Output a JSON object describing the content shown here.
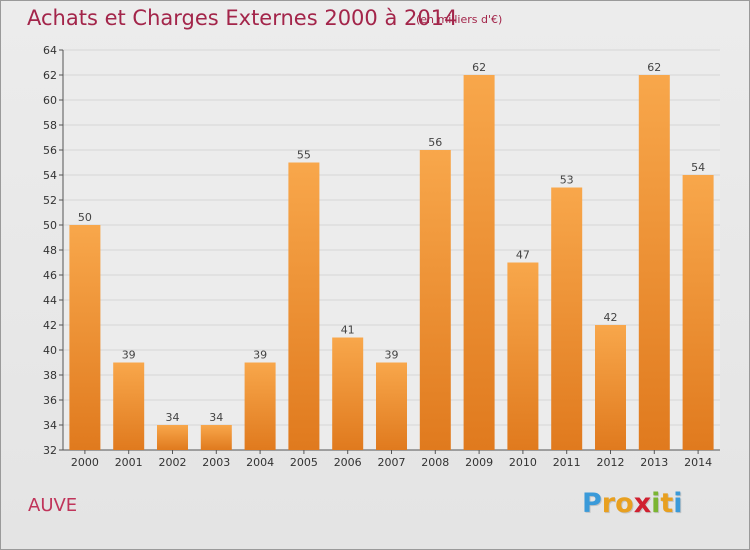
{
  "header": {
    "title": "Achats et Charges Externes 2000 à 2014",
    "subtitle": "(en milliers d'€)"
  },
  "footer": {
    "commune": "AUVE",
    "logo_letters": [
      "P",
      "r",
      "o",
      "x",
      "i",
      "t",
      "i"
    ],
    "logo_colors": [
      "#3a9ad9",
      "#e8a020",
      "#e8a020",
      "#d02030",
      "#7bb532",
      "#e8a020",
      "#3a9ad9"
    ]
  },
  "colors": {
    "bar_light": "#f8a74b",
    "bar_dark": "#e07a1e",
    "grid": "#d6d6d6",
    "axis": "#555555",
    "title": "#a3254a"
  },
  "chart_data": {
    "type": "bar",
    "title": "Achats et Charges Externes 2000 à 2014",
    "subtitle": "(en milliers d'€)",
    "categories": [
      "2000",
      "2001",
      "2002",
      "2003",
      "2004",
      "2005",
      "2006",
      "2007",
      "2008",
      "2009",
      "2010",
      "2011",
      "2012",
      "2013",
      "2014"
    ],
    "values": [
      50,
      39,
      34,
      34,
      39,
      55,
      41,
      39,
      56,
      62,
      47,
      53,
      42,
      62,
      54
    ],
    "ylim": [
      32,
      64
    ],
    "yticks": [
      32,
      34,
      36,
      38,
      40,
      42,
      44,
      46,
      48,
      50,
      52,
      54,
      56,
      58,
      60,
      62,
      64
    ],
    "grid": true,
    "data_labels": true
  }
}
